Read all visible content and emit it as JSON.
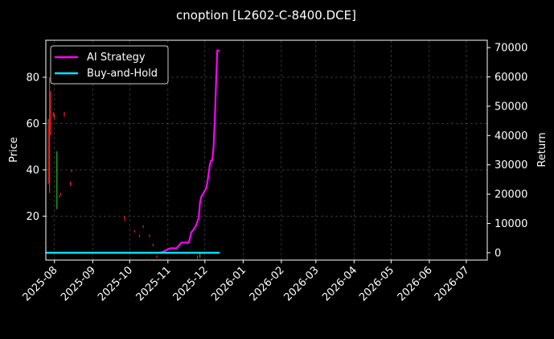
{
  "chart_data": {
    "type": "line",
    "title": "cnoption [L2602-C-8400.DCE]",
    "xlabel": "",
    "ylabel_left": "Price",
    "ylabel_right": "Return",
    "x_ticks": [
      "2025-08",
      "2025-09",
      "2025-10",
      "2025-11",
      "2025-12",
      "2026-01",
      "2026-02",
      "2026-03",
      "2026-04",
      "2026-05",
      "2026-06",
      "2026-07"
    ],
    "xlim": [
      "2025-07-25",
      "2026-07-18"
    ],
    "ylim_left": [
      1,
      96
    ],
    "ylim_right": [
      -2500,
      72500
    ],
    "y_ticks_left": [
      20,
      40,
      60,
      80
    ],
    "y_ticks_right": [
      0,
      10000,
      20000,
      30000,
      40000,
      50000,
      60000,
      70000
    ],
    "grid": true,
    "legend_position": "upper-left",
    "series": [
      {
        "name": "AI Strategy",
        "color": "#ff00ff",
        "axis": "right",
        "points": [
          [
            "2025-10-25",
            0
          ],
          [
            "2025-10-28",
            300
          ],
          [
            "2025-11-01",
            1200
          ],
          [
            "2025-11-03",
            1500
          ],
          [
            "2025-11-05",
            1500
          ],
          [
            "2025-11-08",
            1500
          ],
          [
            "2025-11-10",
            2500
          ],
          [
            "2025-11-12",
            3500
          ],
          [
            "2025-11-15",
            3500
          ],
          [
            "2025-11-18",
            3500
          ],
          [
            "2025-11-20",
            7000
          ],
          [
            "2025-11-22",
            8000
          ],
          [
            "2025-11-24",
            9500
          ],
          [
            "2025-11-26",
            12000
          ],
          [
            "2025-11-27",
            17000
          ],
          [
            "2025-11-28",
            19000
          ],
          [
            "2025-11-30",
            20500
          ],
          [
            "2025-12-02",
            22000
          ],
          [
            "2025-12-03",
            24000
          ],
          [
            "2025-12-05",
            30000
          ],
          [
            "2025-12-06",
            31500
          ],
          [
            "2025-12-07",
            31500
          ],
          [
            "2025-12-08",
            36000
          ],
          [
            "2025-12-09",
            45000
          ],
          [
            "2025-12-10",
            57000
          ],
          [
            "2025-12-11",
            69000
          ],
          [
            "2025-12-13",
            69000
          ]
        ]
      },
      {
        "name": "Buy-and-Hold",
        "color": "#00e5ff",
        "axis": "right",
        "points": [
          [
            "2025-07-25",
            0
          ],
          [
            "2025-12-13",
            0
          ]
        ]
      }
    ],
    "candles": {
      "axis": "left",
      "items": [
        {
          "date": "2025-07-27",
          "high": 62,
          "low": 34,
          "color": "#ff2020"
        },
        {
          "date": "2025-07-28",
          "high": 80,
          "low": 30,
          "color": "#ff2020"
        },
        {
          "date": "2025-07-29",
          "high": 74,
          "low": 55,
          "color": "#ff2020"
        },
        {
          "date": "2025-07-31",
          "high": 65,
          "low": 63,
          "color": "#ff2020"
        },
        {
          "date": "2025-08-01",
          "high": 64,
          "low": 62,
          "color": "#ff2020"
        },
        {
          "date": "2025-08-03",
          "high": 48,
          "low": 23,
          "color": "#20c020"
        },
        {
          "date": "2025-08-05",
          "high": 29,
          "low": 28,
          "color": "#ff2020"
        },
        {
          "date": "2025-08-06",
          "high": 30,
          "low": 29,
          "color": "#ff2020"
        },
        {
          "date": "2025-08-09",
          "high": 65,
          "low": 63,
          "color": "#ff2020"
        },
        {
          "date": "2025-08-14",
          "high": 35,
          "low": 33,
          "color": "#ff2020"
        },
        {
          "date": "2025-08-15",
          "high": 40,
          "low": 39,
          "color": "#ff2020"
        },
        {
          "date": "2025-09-27",
          "high": 20,
          "low": 18,
          "color": "#ff2020"
        },
        {
          "date": "2025-10-05",
          "high": 14,
          "low": 13,
          "color": "#ff2020"
        },
        {
          "date": "2025-10-09",
          "high": 12,
          "low": 11,
          "color": "#ff2020"
        },
        {
          "date": "2025-10-12",
          "high": 16,
          "low": 15,
          "color": "#ff2020"
        },
        {
          "date": "2025-10-17",
          "high": 12,
          "low": 11,
          "color": "#ff2020"
        },
        {
          "date": "2025-10-20",
          "high": 8,
          "low": 7,
          "color": "#ff2020"
        },
        {
          "date": "2025-10-23",
          "high": 3,
          "low": 2,
          "color": "#ff2020"
        },
        {
          "date": "2025-11-25",
          "high": 3,
          "low": 1.5,
          "color": "#ff2020"
        },
        {
          "date": "2025-11-27",
          "high": 4,
          "low": 2,
          "color": "#20c020"
        }
      ]
    }
  }
}
